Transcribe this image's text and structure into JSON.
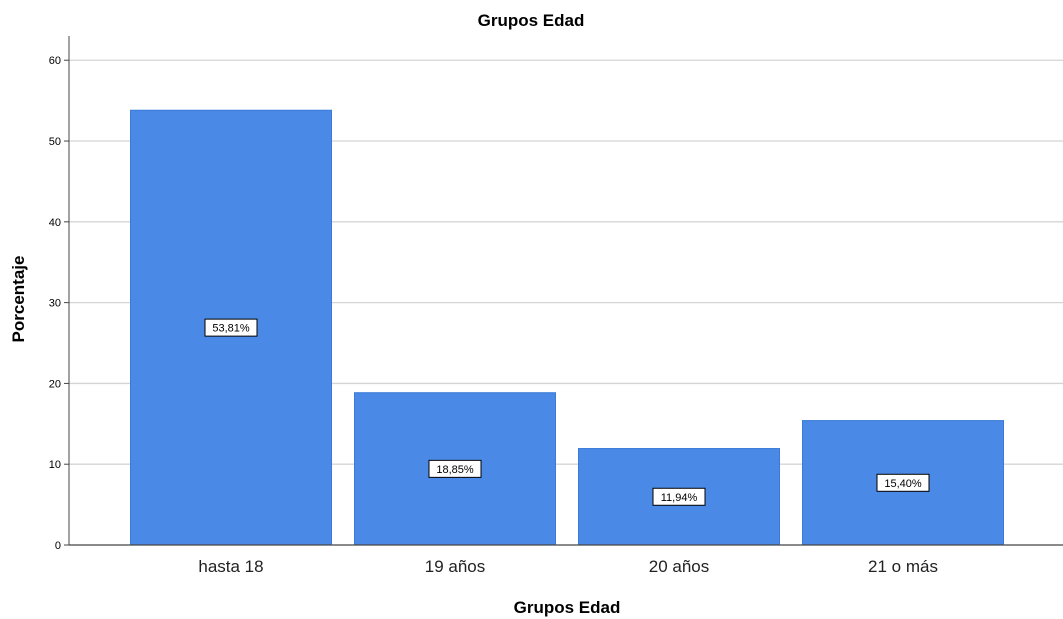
{
  "chart_data": {
    "type": "bar",
    "title": "Grupos Edad",
    "xlabel": "Grupos Edad",
    "ylabel": "Porcentaje",
    "categories": [
      "hasta 18",
      "19 años",
      "20 años",
      "21 o más"
    ],
    "values": [
      53.81,
      18.85,
      11.94,
      15.4
    ],
    "data_labels": [
      "53,81%",
      "18,85%",
      "11,94%",
      "15,40%"
    ],
    "yticks": [
      0,
      10,
      20,
      30,
      40,
      50,
      60
    ],
    "ylim": [
      0,
      63
    ],
    "grid": true,
    "legend": "none",
    "bar_color": "#4a8ae6"
  }
}
